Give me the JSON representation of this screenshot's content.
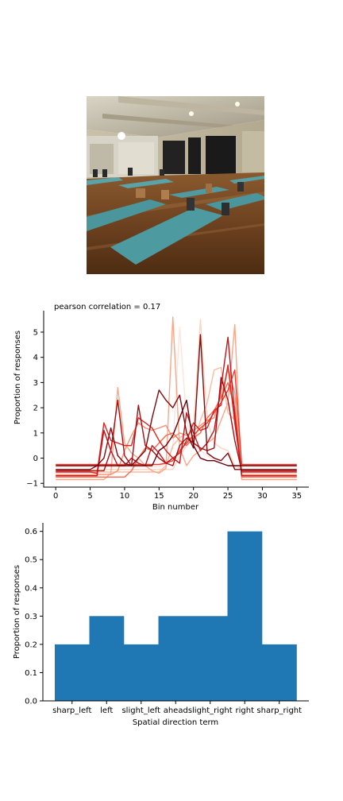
{
  "photo": {
    "icon": "yoga-studio-photo"
  },
  "chart_data": [
    {
      "type": "line",
      "title": "pearson correlation = 0.17",
      "xlabel": "Bin number",
      "ylabel": "Proportion of responses",
      "xlim": [
        -1.75,
        36.75
      ],
      "ylim": [
        -1.15,
        5.85
      ],
      "xticks": [
        0,
        5,
        10,
        15,
        20,
        25,
        30,
        35
      ],
      "yticks": [
        -1,
        0,
        1,
        2,
        3,
        4,
        5
      ],
      "grid": false,
      "legend": "none",
      "colormap": "Reds",
      "x": [
        0,
        1,
        2,
        3,
        4,
        5,
        6,
        7,
        8,
        9,
        10,
        11,
        12,
        13,
        14,
        15,
        16,
        17,
        18,
        19,
        20,
        21,
        22,
        23,
        24,
        25,
        26,
        27,
        28,
        29,
        30,
        31,
        32,
        33,
        34,
        35
      ],
      "series": [
        {
          "color": "#fee5d9",
          "values": [
            -0.35,
            -0.35,
            -0.35,
            -0.35,
            -0.35,
            -0.35,
            -0.35,
            -0.35,
            -0.35,
            -0.35,
            -0.35,
            -0.35,
            -0.35,
            -0.35,
            -0.35,
            -0.35,
            -0.2,
            0.4,
            5.2,
            1.5,
            0.5,
            0.3,
            0.1,
            -0.1,
            -0.2,
            -0.3,
            -0.35,
            -0.35,
            -0.35,
            -0.35,
            -0.35,
            -0.35,
            -0.35,
            -0.35,
            -0.35,
            -0.35
          ]
        },
        {
          "color": "#fcd5c0",
          "values": [
            -0.45,
            -0.45,
            -0.45,
            -0.45,
            -0.45,
            -0.45,
            -0.45,
            -0.45,
            -0.45,
            -0.45,
            -0.45,
            -0.45,
            -0.45,
            -0.45,
            -0.45,
            -0.45,
            -0.45,
            -0.45,
            0.1,
            0.5,
            1.2,
            5.5,
            1.5,
            0.6,
            0.4,
            0.3,
            -0.3,
            -0.45,
            -0.45,
            -0.45,
            -0.45,
            -0.45,
            -0.45,
            -0.45,
            -0.45,
            -0.45
          ]
        },
        {
          "color": "#fcbba1",
          "values": [
            -0.55,
            -0.55,
            -0.55,
            -0.55,
            -0.55,
            -0.55,
            -0.55,
            -0.55,
            -0.55,
            -0.55,
            -0.55,
            -0.55,
            -0.55,
            -0.55,
            -0.55,
            -0.55,
            -0.3,
            0.5,
            0.8,
            1.0,
            0.6,
            1.5,
            2.2,
            3.5,
            3.6,
            1.8,
            1.5,
            -0.55,
            -0.55,
            -0.55,
            -0.55,
            -0.55,
            -0.55,
            -0.55,
            -0.55,
            -0.55
          ]
        },
        {
          "color": "#fca588",
          "values": [
            -0.85,
            -0.85,
            -0.85,
            -0.85,
            -0.85,
            -0.85,
            -0.85,
            -0.85,
            -0.6,
            2.8,
            0.6,
            0.2,
            0.0,
            -0.3,
            -0.5,
            -0.6,
            -0.4,
            5.6,
            0.4,
            -0.3,
            0.1,
            0.3,
            0.6,
            0.8,
            1.5,
            2.2,
            5.3,
            -0.85,
            -0.85,
            -0.85,
            -0.85,
            -0.85,
            -0.85,
            -0.85,
            -0.85,
            -0.85
          ]
        },
        {
          "color": "#fc8d6d",
          "values": [
            -0.65,
            -0.65,
            -0.65,
            -0.65,
            -0.65,
            -0.65,
            -0.65,
            -0.65,
            -0.65,
            -0.5,
            0.3,
            0.9,
            1.4,
            1.2,
            1.1,
            1.2,
            1.3,
            0.8,
            1.0,
            0.9,
            1.1,
            1.3,
            1.5,
            1.6,
            2.5,
            3.5,
            2.6,
            -0.65,
            -0.65,
            -0.65,
            -0.65,
            -0.65,
            -0.65,
            -0.65,
            -0.65,
            -0.65
          ]
        },
        {
          "color": "#f8694c",
          "values": [
            -0.75,
            -0.75,
            -0.75,
            -0.75,
            -0.75,
            -0.75,
            -0.75,
            -0.75,
            -0.75,
            -0.75,
            -0.75,
            -0.5,
            0.0,
            0.4,
            0.3,
            0.6,
            0.9,
            1.0,
            0.7,
            0.5,
            0.8,
            1.0,
            1.6,
            1.9,
            2.4,
            3.0,
            2.0,
            -0.75,
            -0.75,
            -0.75,
            -0.75,
            -0.75,
            -0.75,
            -0.75,
            -0.75,
            -0.75
          ]
        },
        {
          "color": "#ef3b2c",
          "values": [
            -0.25,
            -0.25,
            -0.25,
            -0.25,
            -0.25,
            -0.25,
            -0.25,
            -0.25,
            -0.25,
            -0.25,
            -0.25,
            -0.25,
            -0.25,
            -0.25,
            -0.25,
            -0.25,
            -0.2,
            -0.1,
            0.3,
            0.6,
            0.9,
            1.2,
            1.4,
            1.8,
            2.2,
            2.7,
            3.5,
            -0.25,
            -0.25,
            -0.25,
            -0.25,
            -0.25,
            -0.25,
            -0.25,
            -0.25,
            -0.25
          ]
        },
        {
          "color": "#d92523",
          "values": [
            -0.55,
            -0.55,
            -0.55,
            -0.55,
            -0.55,
            -0.55,
            -0.6,
            1.4,
            0.7,
            0.6,
            0.5,
            0.5,
            1.6,
            1.4,
            1.2,
            0.7,
            0.3,
            0.0,
            0.2,
            0.7,
            1.4,
            1.1,
            1.2,
            1.9,
            2.1,
            3.7,
            1.4,
            -0.55,
            -0.55,
            -0.55,
            -0.55,
            -0.55,
            -0.55,
            -0.55,
            -0.55,
            -0.55
          ]
        },
        {
          "color": "#bf151b",
          "values": [
            -0.7,
            -0.7,
            -0.7,
            -0.7,
            -0.7,
            -0.7,
            -0.7,
            1.1,
            0.3,
            -0.3,
            -0.3,
            0.0,
            -0.2,
            -0.3,
            0.5,
            0.2,
            -0.2,
            0.0,
            -0.2,
            1.8,
            1.0,
            0.3,
            0.6,
            1.1,
            2.8,
            4.8,
            1.7,
            -0.7,
            -0.7,
            -0.7,
            -0.7,
            -0.7,
            -0.7,
            -0.7,
            -0.7,
            -0.7
          ]
        },
        {
          "color": "#a50f15",
          "values": [
            -0.5,
            -0.5,
            -0.5,
            -0.5,
            -0.5,
            -0.5,
            -0.5,
            -0.5,
            0.3,
            2.3,
            0.1,
            -0.3,
            2.1,
            0.5,
            0.3,
            0.0,
            -0.2,
            -0.3,
            0.5,
            0.8,
            0.6,
            0.4,
            0.3,
            0.4,
            3.2,
            2.3,
            0.7,
            -0.5,
            -0.5,
            -0.5,
            -0.5,
            -0.5,
            -0.5,
            -0.5,
            -0.5,
            -0.5
          ]
        },
        {
          "color": "#7f0a12",
          "values": [
            -0.45,
            -0.45,
            -0.45,
            -0.45,
            -0.45,
            -0.45,
            -0.3,
            0.0,
            1.2,
            0.1,
            -0.2,
            -0.3,
            0.0,
            0.3,
            1.6,
            2.7,
            2.3,
            2.0,
            2.5,
            1.0,
            0.4,
            4.9,
            0.2,
            0.0,
            -0.1,
            0.2,
            -0.45,
            -0.45,
            -0.45,
            -0.45,
            -0.45,
            -0.45,
            -0.45,
            -0.45,
            -0.45,
            -0.45
          ]
        },
        {
          "color": "#67000d",
          "values": [
            -0.3,
            -0.3,
            -0.3,
            -0.3,
            -0.3,
            -0.3,
            -0.3,
            -0.3,
            -0.3,
            -0.3,
            -0.3,
            -0.3,
            -0.3,
            -0.3,
            -0.3,
            0.3,
            0.5,
            0.9,
            1.6,
            2.3,
            0.5,
            0.0,
            -0.1,
            -0.1,
            -0.2,
            -0.3,
            -0.3,
            -0.3,
            -0.3,
            -0.3,
            -0.3,
            -0.3,
            -0.3,
            -0.3,
            -0.3,
            -0.3
          ]
        }
      ]
    },
    {
      "type": "bar",
      "title": "",
      "xlabel": "Spatial direction term",
      "ylabel": "Proportion of responses",
      "categories": [
        "sharp_left",
        "left",
        "slight_left",
        "ahead",
        "slight_right",
        "right",
        "sharp_right"
      ],
      "values": [
        0.2,
        0.3,
        0.2,
        0.3,
        0.3,
        0.6,
        0.2
      ],
      "ylim": [
        0,
        0.63
      ],
      "yticks": [
        0.0,
        0.1,
        0.2,
        0.3,
        0.4,
        0.5,
        0.6
      ],
      "ytick_labels": [
        "0.0",
        "0.1",
        "0.2",
        "0.3",
        "0.4",
        "0.5",
        "0.6"
      ],
      "bar_color": "#1f77b4",
      "grid": false,
      "legend": "none"
    }
  ]
}
